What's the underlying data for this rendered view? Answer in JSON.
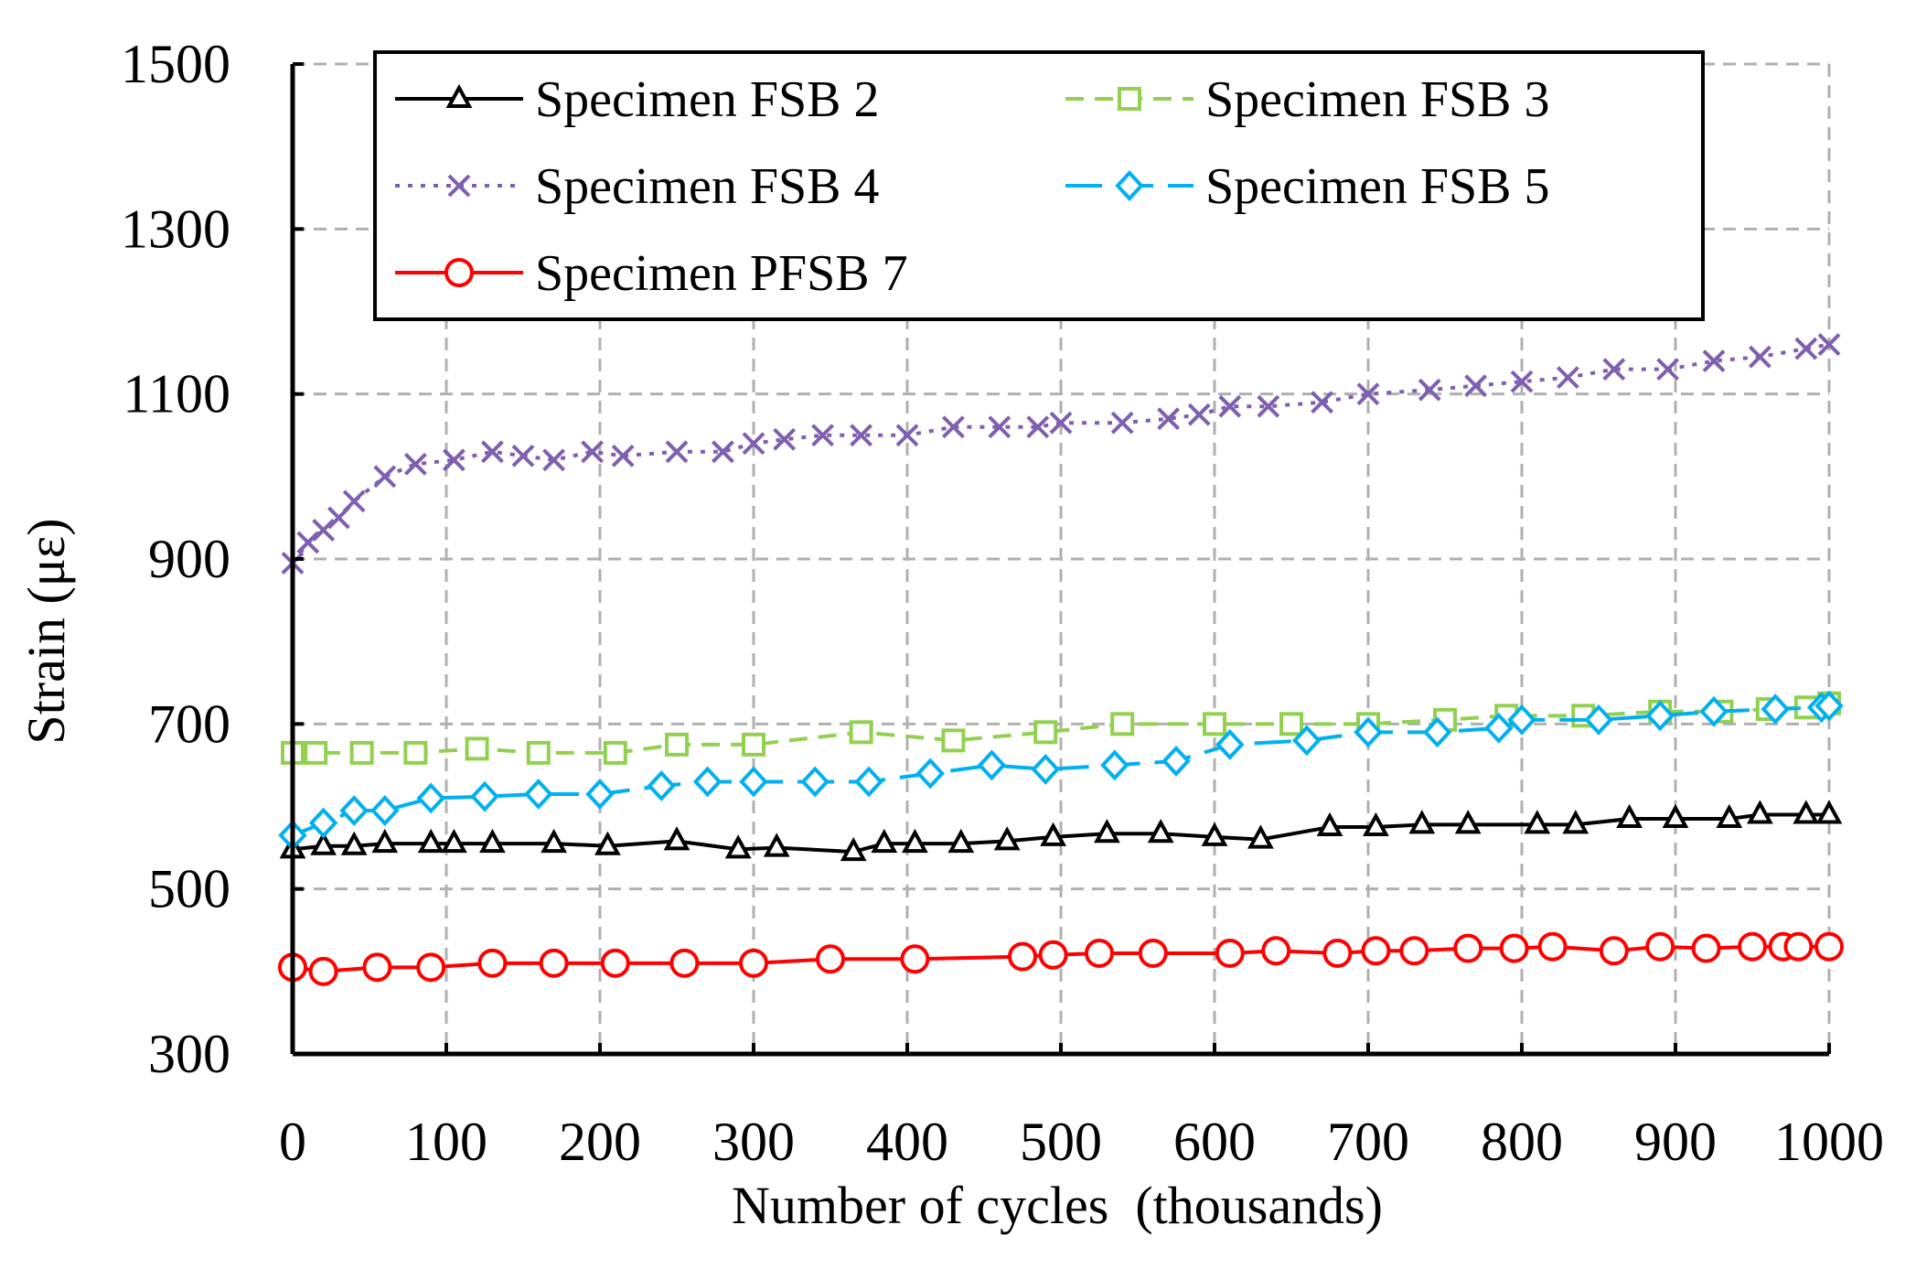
{
  "chart_data": {
    "type": "line",
    "title": "",
    "xlabel": "Number of cycles  (thousands)",
    "ylabel": "Strain (με)",
    "xlim": [
      0,
      1000
    ],
    "ylim": [
      300,
      1500
    ],
    "xticks": [
      0,
      100,
      200,
      300,
      400,
      500,
      600,
      700,
      800,
      900,
      1000
    ],
    "yticks": [
      300,
      500,
      700,
      900,
      1100,
      1300,
      1500
    ],
    "grid": true,
    "legend_position": "top",
    "series": [
      {
        "name": "Specimen FSB 2",
        "color": "#000000",
        "line_style": "solid",
        "marker": "triangle",
        "x": [
          0,
          20,
          40,
          60,
          90,
          105,
          130,
          170,
          205,
          250,
          290,
          315,
          365,
          385,
          405,
          435,
          465,
          495,
          530,
          565,
          600,
          630,
          675,
          705,
          735,
          765,
          810,
          835,
          870,
          900,
          935,
          955,
          985,
          1000
        ],
        "y": [
          548,
          552,
          552,
          555,
          555,
          555,
          555,
          555,
          552,
          558,
          548,
          550,
          545,
          555,
          555,
          555,
          558,
          563,
          567,
          567,
          563,
          560,
          575,
          575,
          578,
          578,
          578,
          578,
          585,
          585,
          585,
          590,
          590,
          590
        ]
      },
      {
        "name": "Specimen FSB 3",
        "color": "#92D050",
        "line_style": "dashed",
        "marker": "square",
        "x": [
          0,
          15,
          45,
          80,
          120,
          160,
          210,
          250,
          300,
          370,
          430,
          490,
          540,
          600,
          650,
          700,
          750,
          790,
          840,
          890,
          930,
          960,
          985,
          1000
        ],
        "y": [
          665,
          665,
          665,
          665,
          670,
          665,
          665,
          675,
          675,
          690,
          680,
          690,
          700,
          700,
          700,
          700,
          705,
          710,
          710,
          715,
          715,
          718,
          720,
          725
        ]
      },
      {
        "name": "Specimen FSB 4",
        "color": "#7E5FB0",
        "line_style": "dotted",
        "marker": "x",
        "x": [
          0,
          10,
          20,
          30,
          40,
          60,
          80,
          105,
          130,
          150,
          170,
          195,
          215,
          250,
          280,
          300,
          320,
          345,
          370,
          400,
          430,
          460,
          485,
          500,
          540,
          570,
          590,
          610,
          635,
          670,
          700,
          740,
          770,
          800,
          830,
          860,
          895,
          925,
          955,
          985,
          1000
        ],
        "y": [
          895,
          920,
          935,
          950,
          970,
          1000,
          1015,
          1020,
          1030,
          1025,
          1020,
          1030,
          1025,
          1030,
          1030,
          1040,
          1045,
          1050,
          1050,
          1050,
          1060,
          1060,
          1060,
          1065,
          1065,
          1070,
          1075,
          1085,
          1085,
          1090,
          1100,
          1105,
          1110,
          1115,
          1120,
          1130,
          1130,
          1140,
          1145,
          1155,
          1160
        ]
      },
      {
        "name": "Specimen FSB 5",
        "color": "#00B0F0",
        "line_style": "dashdot",
        "marker": "diamond",
        "x": [
          0,
          20,
          40,
          60,
          90,
          125,
          160,
          200,
          240,
          270,
          300,
          340,
          375,
          415,
          455,
          490,
          535,
          575,
          610,
          660,
          700,
          745,
          785,
          800,
          850,
          890,
          925,
          965,
          995,
          1000
        ],
        "y": [
          565,
          580,
          595,
          595,
          610,
          612,
          615,
          615,
          625,
          630,
          630,
          630,
          630,
          640,
          650,
          645,
          650,
          655,
          675,
          680,
          690,
          690,
          695,
          705,
          705,
          710,
          715,
          718,
          720,
          722
        ]
      },
      {
        "name": "Specimen PFSB 7",
        "color": "#FF0000",
        "line_style": "solid",
        "marker": "circle",
        "x": [
          0,
          20,
          55,
          90,
          130,
          170,
          210,
          255,
          300,
          350,
          405,
          475,
          495,
          525,
          560,
          610,
          640,
          680,
          705,
          730,
          765,
          795,
          820,
          860,
          890,
          920,
          950,
          970,
          980,
          1000
        ],
        "y": [
          405,
          400,
          405,
          405,
          410,
          410,
          410,
          410,
          410,
          415,
          415,
          418,
          420,
          422,
          422,
          422,
          425,
          422,
          425,
          425,
          428,
          428,
          430,
          425,
          430,
          428,
          430,
          430,
          430,
          430
        ]
      }
    ]
  }
}
